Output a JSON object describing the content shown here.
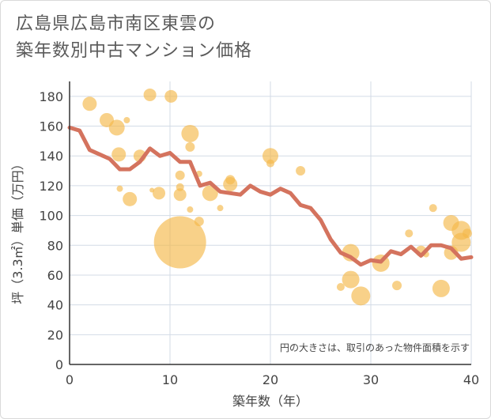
{
  "chart_data": {
    "type": "scatter",
    "title_lines": [
      "広島県広島市南区東雲の",
      "築年数別中古マンション価格"
    ],
    "xlabel": "築年数（年）",
    "ylabel": "坪（3.3㎡）単価（万円）",
    "xlim": [
      0,
      40
    ],
    "ylim": [
      0,
      190
    ],
    "x_ticks": [
      0,
      10,
      20,
      30,
      40
    ],
    "y_ticks": [
      0,
      20,
      40,
      60,
      80,
      100,
      120,
      140,
      160,
      180
    ],
    "grid": true,
    "note": "円の大きさは、取引のあった物件面積を示す",
    "colors": {
      "bubble": "#f5b94a",
      "line": "#d4735e",
      "grid": "#d3dbe6",
      "axis": "#333333"
    },
    "series": [
      {
        "type": "line",
        "x": [
          0,
          1,
          2,
          3,
          4,
          5,
          6,
          7,
          8,
          9,
          10,
          11,
          12,
          13,
          14,
          15,
          16,
          17,
          18,
          19,
          20,
          21,
          22,
          23,
          24,
          25,
          26,
          27,
          28,
          29,
          30,
          31,
          32,
          33,
          34,
          35,
          36,
          37,
          38,
          39,
          40
        ],
        "y": [
          159,
          157,
          144,
          141,
          138,
          131,
          131,
          136,
          145,
          140,
          142,
          136,
          136,
          120,
          122,
          116,
          115,
          114,
          120,
          116,
          114,
          118,
          115,
          107,
          105,
          97,
          84,
          75,
          72,
          67,
          70,
          69,
          76,
          74,
          79,
          73,
          80,
          80,
          78,
          71,
          72
        ]
      },
      {
        "type": "bubble",
        "points": [
          {
            "x": 2,
            "y": 175,
            "r": 9
          },
          {
            "x": 3.7,
            "y": 164,
            "r": 9
          },
          {
            "x": 4.7,
            "y": 159,
            "r": 10
          },
          {
            "x": 5.7,
            "y": 164,
            "r": 4
          },
          {
            "x": 4.9,
            "y": 141,
            "r": 9
          },
          {
            "x": 7,
            "y": 140,
            "r": 8
          },
          {
            "x": 8,
            "y": 181,
            "r": 8
          },
          {
            "x": 10.1,
            "y": 180,
            "r": 8
          },
          {
            "x": 6,
            "y": 111,
            "r": 9
          },
          {
            "x": 5,
            "y": 118,
            "r": 4
          },
          {
            "x": 8.2,
            "y": 117,
            "r": 3
          },
          {
            "x": 8.9,
            "y": 115,
            "r": 8
          },
          {
            "x": 11,
            "y": 82,
            "r": 33
          },
          {
            "x": 11,
            "y": 114,
            "r": 8
          },
          {
            "x": 11,
            "y": 119,
            "r": 5
          },
          {
            "x": 11,
            "y": 127,
            "r": 6
          },
          {
            "x": 12,
            "y": 155,
            "r": 11
          },
          {
            "x": 12,
            "y": 146,
            "r": 6
          },
          {
            "x": 12,
            "y": 104,
            "r": 4
          },
          {
            "x": 12.9,
            "y": 128,
            "r": 4
          },
          {
            "x": 12.9,
            "y": 96,
            "r": 6
          },
          {
            "x": 14,
            "y": 115,
            "r": 10
          },
          {
            "x": 15,
            "y": 105,
            "r": 4
          },
          {
            "x": 16,
            "y": 121,
            "r": 9
          },
          {
            "x": 16,
            "y": 124,
            "r": 6
          },
          {
            "x": 20,
            "y": 140,
            "r": 10
          },
          {
            "x": 20,
            "y": 135,
            "r": 5
          },
          {
            "x": 23,
            "y": 130,
            "r": 6
          },
          {
            "x": 27,
            "y": 52,
            "r": 5
          },
          {
            "x": 28,
            "y": 75,
            "r": 11
          },
          {
            "x": 28,
            "y": 57,
            "r": 11
          },
          {
            "x": 29,
            "y": 46,
            "r": 12
          },
          {
            "x": 31,
            "y": 68,
            "r": 11
          },
          {
            "x": 32.6,
            "y": 53,
            "r": 6
          },
          {
            "x": 33.8,
            "y": 88,
            "r": 5
          },
          {
            "x": 35,
            "y": 76,
            "r": 7
          },
          {
            "x": 35.5,
            "y": 74,
            "r": 4
          },
          {
            "x": 36.2,
            "y": 105,
            "r": 5
          },
          {
            "x": 37,
            "y": 51,
            "r": 11
          },
          {
            "x": 38,
            "y": 95,
            "r": 10
          },
          {
            "x": 38,
            "y": 75,
            "r": 9
          },
          {
            "x": 39,
            "y": 90,
            "r": 12
          },
          {
            "x": 39,
            "y": 82,
            "r": 12
          },
          {
            "x": 39.6,
            "y": 88,
            "r": 6
          }
        ]
      }
    ]
  }
}
